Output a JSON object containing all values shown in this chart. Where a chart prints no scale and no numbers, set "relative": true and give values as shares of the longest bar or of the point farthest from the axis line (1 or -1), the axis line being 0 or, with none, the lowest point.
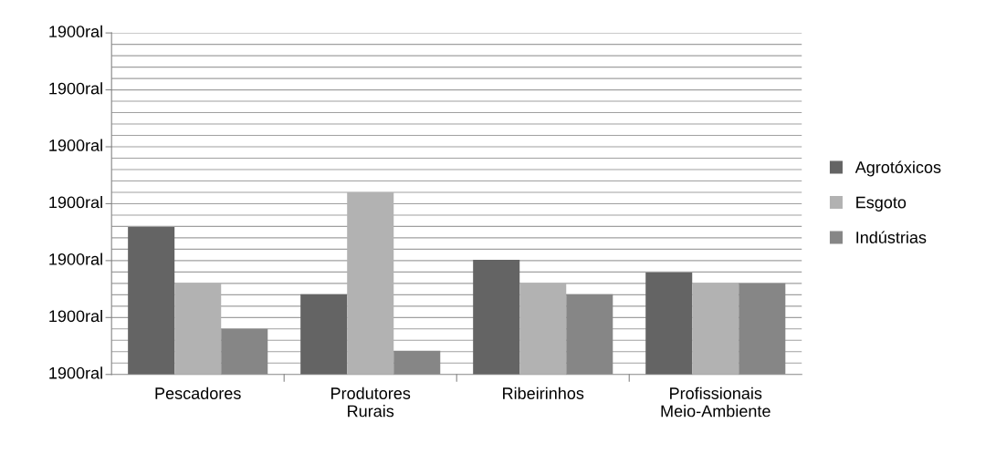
{
  "chart_data": {
    "type": "bar",
    "relative": true,
    "categories": [
      "Pescadores",
      "Produtores\nRurais",
      "Ribeirinhos",
      "Profissionais\nMeio-Ambiente"
    ],
    "series": [
      {
        "name": "Agrotóxicos",
        "color": "#646464",
        "values": [
          0.81,
          0.44,
          0.63,
          0.56
        ]
      },
      {
        "name": "Esgoto",
        "color": "#b2b2b2",
        "values": [
          0.5,
          1,
          0.5,
          0.5
        ]
      },
      {
        "name": "Indústrias",
        "color": "#868686",
        "values": [
          0.25,
          0.13,
          0.44,
          0.5
        ]
      }
    ],
    "annotations": [
      "1900ral",
      "1900ral",
      "1900ral",
      "1900ral",
      "1900ral",
      "1900ral",
      "1900ral"
    ],
    "grid": "y",
    "legend": "right"
  }
}
